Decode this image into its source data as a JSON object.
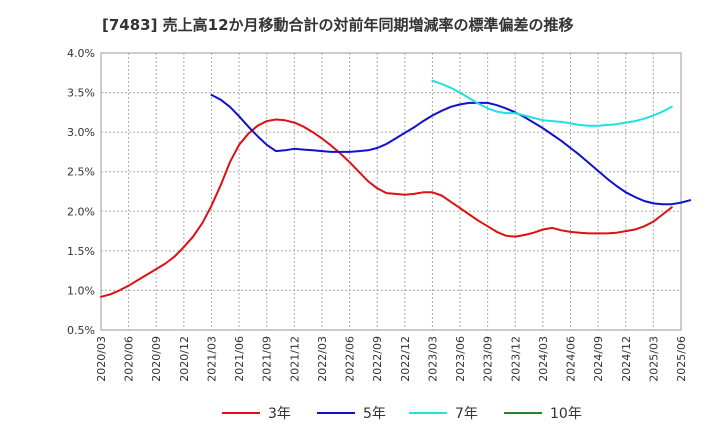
{
  "chart_data": {
    "type": "line",
    "title": "[7483]  売上高12か月移動合計の対前年同期増減率の標準偏差の推移",
    "xlabel": "",
    "ylabel": "",
    "x_range": [
      "2020-03",
      "2025-06"
    ],
    "ylim": [
      0.5,
      4.0
    ],
    "grid": true,
    "legend_position": "bottom",
    "y_ticks": [
      "0.5%",
      "1.0%",
      "1.5%",
      "2.0%",
      "2.5%",
      "3.0%",
      "3.5%",
      "4.0%"
    ],
    "x_ticks": [
      "2020/03",
      "2020/06",
      "2020/09",
      "2020/12",
      "2021/03",
      "2021/06",
      "2021/09",
      "2021/12",
      "2022/03",
      "2022/06",
      "2022/09",
      "2022/12",
      "2023/03",
      "2023/06",
      "2023/09",
      "2023/12",
      "2024/03",
      "2024/06",
      "2024/09",
      "2024/12",
      "2025/03",
      "2025/06"
    ],
    "series": [
      {
        "name": "3年",
        "color": "#dd1111",
        "points": [
          [
            "2020-03",
            0.92
          ],
          [
            "2020-04",
            0.95
          ],
          [
            "2020-05",
            1.0
          ],
          [
            "2020-06",
            1.06
          ],
          [
            "2020-07",
            1.13
          ],
          [
            "2020-08",
            1.2
          ],
          [
            "2020-09",
            1.27
          ],
          [
            "2020-10",
            1.34
          ],
          [
            "2020-11",
            1.43
          ],
          [
            "2020-12",
            1.55
          ],
          [
            "2021-01",
            1.68
          ],
          [
            "2021-02",
            1.85
          ],
          [
            "2021-03",
            2.07
          ],
          [
            "2021-04",
            2.33
          ],
          [
            "2021-05",
            2.62
          ],
          [
            "2021-06",
            2.84
          ],
          [
            "2021-07",
            2.98
          ],
          [
            "2021-08",
            3.08
          ],
          [
            "2021-09",
            3.14
          ],
          [
            "2021-10",
            3.16
          ],
          [
            "2021-11",
            3.15
          ],
          [
            "2021-12",
            3.12
          ],
          [
            "2022-01",
            3.07
          ],
          [
            "2022-02",
            3.0
          ],
          [
            "2022-03",
            2.92
          ],
          [
            "2022-04",
            2.83
          ],
          [
            "2022-05",
            2.73
          ],
          [
            "2022-06",
            2.62
          ],
          [
            "2022-07",
            2.5
          ],
          [
            "2022-08",
            2.38
          ],
          [
            "2022-09",
            2.29
          ],
          [
            "2022-10",
            2.23
          ],
          [
            "2022-11",
            2.22
          ],
          [
            "2022-12",
            2.21
          ],
          [
            "2023-01",
            2.22
          ],
          [
            "2023-02",
            2.24
          ],
          [
            "2023-03",
            2.24
          ],
          [
            "2023-04",
            2.2
          ],
          [
            "2023-05",
            2.12
          ],
          [
            "2023-06",
            2.04
          ],
          [
            "2023-07",
            1.96
          ],
          [
            "2023-08",
            1.88
          ],
          [
            "2023-09",
            1.81
          ],
          [
            "2023-10",
            1.74
          ],
          [
            "2023-11",
            1.69
          ],
          [
            "2023-12",
            1.68
          ],
          [
            "2024-01",
            1.7
          ],
          [
            "2024-02",
            1.73
          ],
          [
            "2024-03",
            1.77
          ],
          [
            "2024-04",
            1.79
          ],
          [
            "2024-05",
            1.76
          ],
          [
            "2024-06",
            1.74
          ],
          [
            "2024-07",
            1.73
          ],
          [
            "2024-08",
            1.72
          ],
          [
            "2024-09",
            1.72
          ],
          [
            "2024-10",
            1.72
          ],
          [
            "2024-11",
            1.73
          ],
          [
            "2024-12",
            1.75
          ],
          [
            "2025-01",
            1.77
          ],
          [
            "2025-02",
            1.81
          ],
          [
            "2025-03",
            1.87
          ],
          [
            "2025-04",
            1.96
          ],
          [
            "2025-05",
            2.05
          ]
        ]
      },
      {
        "name": "5年",
        "color": "#1111cc",
        "points": [
          [
            "2021-03",
            3.47
          ],
          [
            "2021-04",
            3.41
          ],
          [
            "2021-05",
            3.32
          ],
          [
            "2021-06",
            3.2
          ],
          [
            "2021-07",
            3.07
          ],
          [
            "2021-08",
            2.95
          ],
          [
            "2021-09",
            2.84
          ],
          [
            "2021-10",
            2.76
          ],
          [
            "2021-11",
            2.77
          ],
          [
            "2021-12",
            2.79
          ],
          [
            "2022-01",
            2.78
          ],
          [
            "2022-02",
            2.77
          ],
          [
            "2022-03",
            2.76
          ],
          [
            "2022-04",
            2.75
          ],
          [
            "2022-05",
            2.75
          ],
          [
            "2022-06",
            2.75
          ],
          [
            "2022-07",
            2.76
          ],
          [
            "2022-08",
            2.77
          ],
          [
            "2022-09",
            2.8
          ],
          [
            "2022-10",
            2.85
          ],
          [
            "2022-11",
            2.92
          ],
          [
            "2022-12",
            2.99
          ],
          [
            "2023-01",
            3.06
          ],
          [
            "2023-02",
            3.14
          ],
          [
            "2023-03",
            3.21
          ],
          [
            "2023-04",
            3.27
          ],
          [
            "2023-05",
            3.32
          ],
          [
            "2023-06",
            3.35
          ],
          [
            "2023-07",
            3.37
          ],
          [
            "2023-08",
            3.37
          ],
          [
            "2023-09",
            3.37
          ],
          [
            "2023-10",
            3.34
          ],
          [
            "2023-11",
            3.3
          ],
          [
            "2023-12",
            3.25
          ],
          [
            "2024-01",
            3.19
          ],
          [
            "2024-02",
            3.12
          ],
          [
            "2024-03",
            3.05
          ],
          [
            "2024-04",
            2.97
          ],
          [
            "2024-05",
            2.89
          ],
          [
            "2024-06",
            2.8
          ],
          [
            "2024-07",
            2.71
          ],
          [
            "2024-08",
            2.61
          ],
          [
            "2024-09",
            2.51
          ],
          [
            "2024-10",
            2.41
          ],
          [
            "2024-11",
            2.32
          ],
          [
            "2024-12",
            2.24
          ],
          [
            "2025-01",
            2.18
          ],
          [
            "2025-02",
            2.13
          ],
          [
            "2025-03",
            2.1
          ],
          [
            "2025-04",
            2.09
          ],
          [
            "2025-05",
            2.09
          ],
          [
            "2025-06",
            2.11
          ],
          [
            "2025-07",
            2.14
          ]
        ]
      },
      {
        "name": "7年",
        "color": "#22e0e0",
        "points": [
          [
            "2023-03",
            3.65
          ],
          [
            "2023-04",
            3.61
          ],
          [
            "2023-05",
            3.56
          ],
          [
            "2023-06",
            3.5
          ],
          [
            "2023-07",
            3.43
          ],
          [
            "2023-08",
            3.36
          ],
          [
            "2023-09",
            3.3
          ],
          [
            "2023-10",
            3.26
          ],
          [
            "2023-11",
            3.24
          ],
          [
            "2023-12",
            3.24
          ],
          [
            "2024-01",
            3.21
          ],
          [
            "2024-02",
            3.18
          ],
          [
            "2024-03",
            3.15
          ],
          [
            "2024-04",
            3.14
          ],
          [
            "2024-05",
            3.13
          ],
          [
            "2024-06",
            3.11
          ],
          [
            "2024-07",
            3.09
          ],
          [
            "2024-08",
            3.08
          ],
          [
            "2024-09",
            3.08
          ],
          [
            "2024-10",
            3.09
          ],
          [
            "2024-11",
            3.1
          ],
          [
            "2024-12",
            3.12
          ],
          [
            "2025-01",
            3.14
          ],
          [
            "2025-02",
            3.17
          ],
          [
            "2025-03",
            3.21
          ],
          [
            "2025-04",
            3.26
          ],
          [
            "2025-05",
            3.32
          ]
        ]
      },
      {
        "name": "10年",
        "color": "#228822",
        "points": []
      }
    ]
  }
}
